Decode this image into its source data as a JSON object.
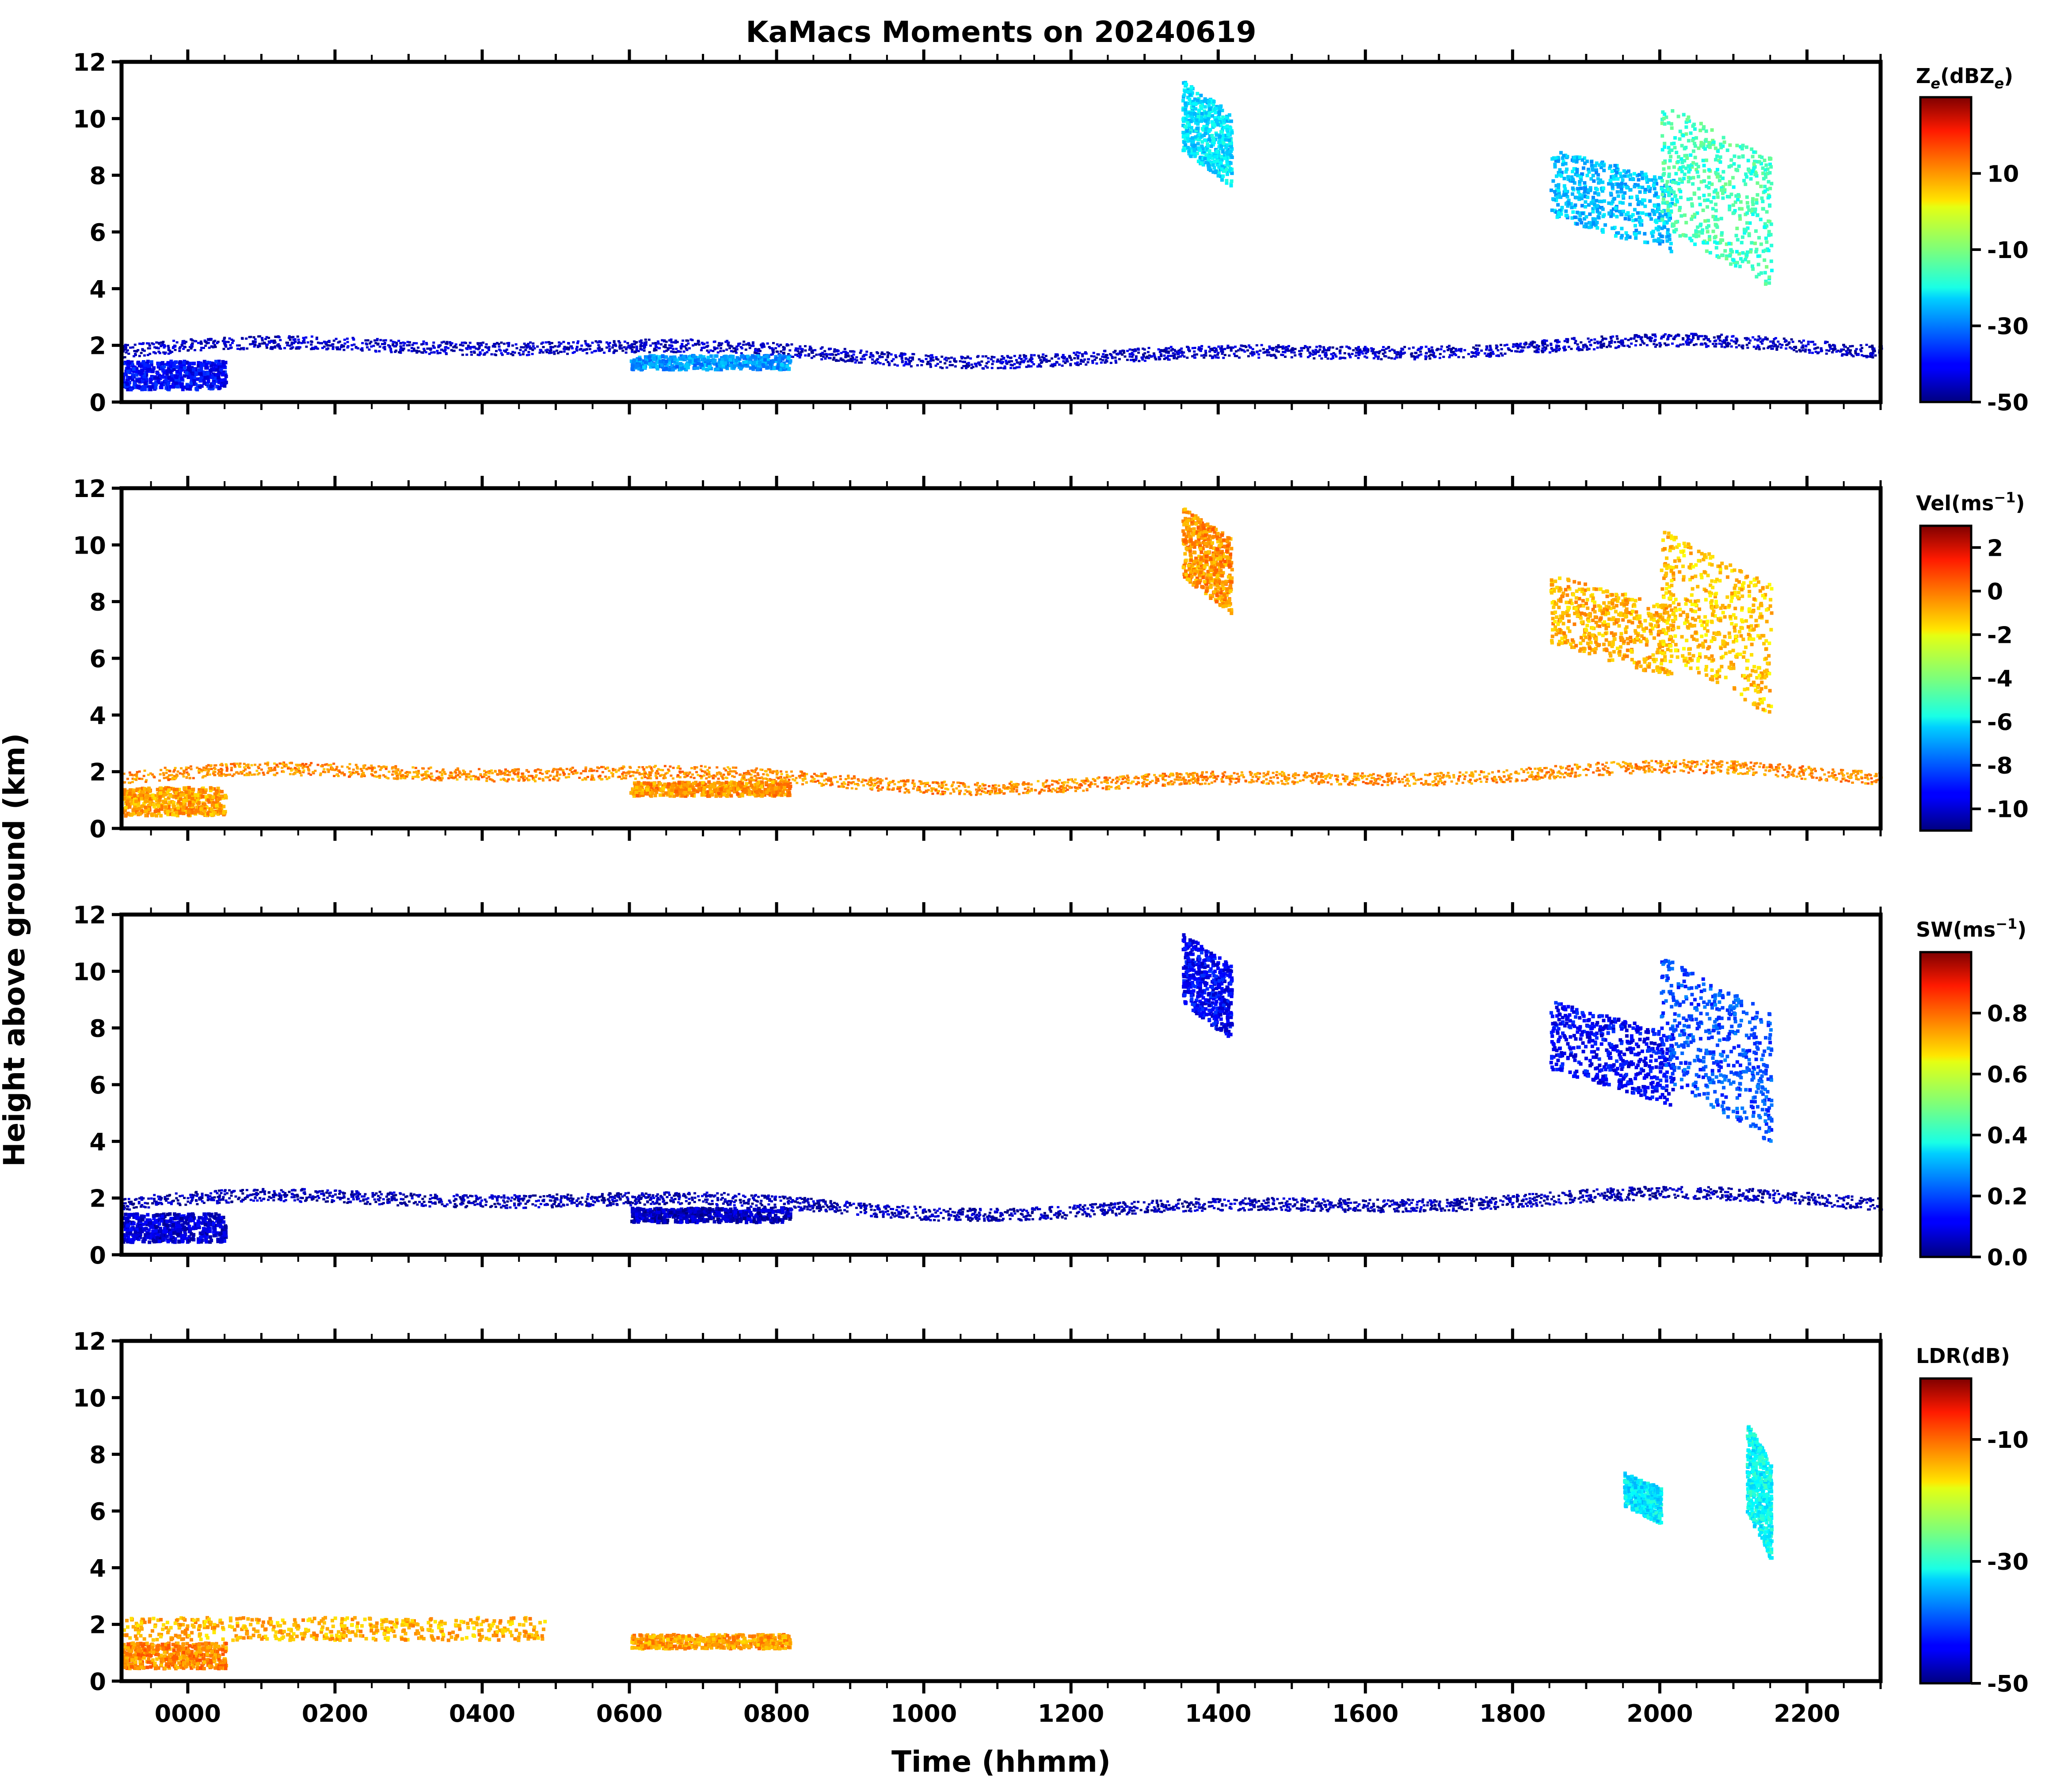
{
  "figure": {
    "title": "KaMacs Moments on 20240619",
    "xlabel": "Time (hhmm)",
    "ylabel": "Height above ground (km)"
  },
  "chart_data": [
    {
      "type": "heatmap",
      "panel": "Ze",
      "colorbar_label": "Ze(dBZe)",
      "colorbar_label_parts": {
        "main": "Z",
        "sub": "e",
        "units_open": "(dBZ",
        "units_sub": "e",
        "units_close": ")"
      },
      "colormap": "jet",
      "clim": [
        -50,
        30
      ],
      "colorbar_ticks": [
        10,
        -10,
        -30,
        -50
      ],
      "xlim": [
        -90,
        2300
      ],
      "ylim": [
        0,
        12
      ],
      "x_ticks": [
        "0000",
        "0200",
        "0400",
        "0600",
        "0800",
        "1000",
        "1200",
        "1400",
        "1600",
        "1800",
        "2000",
        "2200"
      ],
      "y_ticks": [
        0,
        2,
        4,
        6,
        8,
        10,
        12
      ],
      "features": [
        {
          "name": "boundary-layer-band",
          "x": [
            -90,
            2300
          ],
          "height_km": [
            1.6,
            2.6
          ],
          "value": -45
        },
        {
          "name": "low-echo-patch",
          "x": [
            -60,
            30
          ],
          "height_km": [
            0.5,
            1.5
          ],
          "value": -40
        },
        {
          "name": "midmorning-layer",
          "x": [
            560,
            810
          ],
          "height_km": [
            1.2,
            1.7
          ],
          "value": -28
        },
        {
          "name": "cirrus-1300",
          "x": [
            1290,
            1370
          ],
          "height_km": [
            7.6,
            11.4
          ],
          "value": -22
        },
        {
          "name": "cirrus-1800",
          "x": [
            1830,
            1970
          ],
          "height_km": [
            5.3,
            9.0
          ],
          "value": -25
        },
        {
          "name": "cirrus-2000",
          "x": [
            2000,
            2130
          ],
          "height_km": [
            4.0,
            10.6
          ],
          "value": -15
        }
      ]
    },
    {
      "type": "heatmap",
      "panel": "Vel",
      "colorbar_label": "Vel(ms−1)",
      "colorbar_label_parts": {
        "main": "Vel(ms",
        "sup": "−1",
        "close": ")"
      },
      "colormap": "jet",
      "clim": [
        -11,
        3
      ],
      "colorbar_ticks": [
        2,
        0,
        -2,
        -4,
        -6,
        -8,
        -10
      ],
      "xlim": [
        -90,
        2300
      ],
      "ylim": [
        0,
        12
      ],
      "features": [
        {
          "name": "boundary-layer-band",
          "x": [
            -90,
            2300
          ],
          "height_km": [
            1.6,
            2.6
          ],
          "value": -0.7
        },
        {
          "name": "low-echo-patch",
          "x": [
            -60,
            30
          ],
          "height_km": [
            0.5,
            1.5
          ],
          "value": -1.0
        },
        {
          "name": "midmorning-layer",
          "x": [
            560,
            810
          ],
          "height_km": [
            1.2,
            1.7
          ],
          "value": -0.8
        },
        {
          "name": "cirrus-1300",
          "x": [
            1290,
            1370
          ],
          "height_km": [
            7.6,
            11.4
          ],
          "value": -0.8
        },
        {
          "name": "cirrus-1800",
          "x": [
            1830,
            1970
          ],
          "height_km": [
            5.3,
            9.0
          ],
          "value": -1.2
        },
        {
          "name": "cirrus-2000",
          "x": [
            2000,
            2130
          ],
          "height_km": [
            4.0,
            10.6
          ],
          "value": -1.5
        }
      ]
    },
    {
      "type": "heatmap",
      "panel": "SW",
      "colorbar_label": "SW(ms−1)",
      "colorbar_label_parts": {
        "main": "SW(ms",
        "sup": "−1",
        "close": ")"
      },
      "colormap": "jet",
      "clim": [
        0.0,
        1.0
      ],
      "colorbar_ticks": [
        0.8,
        0.6,
        0.4,
        0.2,
        0.0
      ],
      "colorbar_tick_labels": [
        "0.8",
        "0.6",
        "0.4",
        "0.2",
        "0.0"
      ],
      "xlim": [
        -90,
        2300
      ],
      "ylim": [
        0,
        12
      ],
      "features": [
        {
          "name": "boundary-layer-band",
          "x": [
            -90,
            2300
          ],
          "height_km": [
            1.6,
            2.6
          ],
          "value": 0.05
        },
        {
          "name": "low-echo-patch",
          "x": [
            -60,
            30
          ],
          "height_km": [
            0.5,
            1.5
          ],
          "value": 0.08
        },
        {
          "name": "midmorning-layer",
          "x": [
            560,
            810
          ],
          "height_km": [
            1.2,
            1.7
          ],
          "value": 0.06
        },
        {
          "name": "cirrus-1300",
          "x": [
            1290,
            1370
          ],
          "height_km": [
            7.6,
            11.4
          ],
          "value": 0.12
        },
        {
          "name": "cirrus-1800",
          "x": [
            1830,
            1970
          ],
          "height_km": [
            5.3,
            9.0
          ],
          "value": 0.12
        },
        {
          "name": "cirrus-2000",
          "x": [
            2000,
            2130
          ],
          "height_km": [
            4.0,
            10.6
          ],
          "value": 0.2
        }
      ]
    },
    {
      "type": "heatmap",
      "panel": "LDR",
      "colorbar_label": "LDR(dB)",
      "colormap": "jet",
      "clim": [
        -50,
        0
      ],
      "colorbar_ticks": [
        -10,
        -30,
        -50
      ],
      "xlim": [
        -90,
        2300
      ],
      "ylim": [
        0,
        12
      ],
      "features": [
        {
          "name": "boundary-layer-band",
          "x": [
            -90,
            450
          ],
          "height_km": [
            1.5,
            2.3
          ],
          "value": -15
        },
        {
          "name": "low-echo-patch",
          "x": [
            -60,
            30
          ],
          "height_km": [
            0.5,
            1.4
          ],
          "value": -13
        },
        {
          "name": "midmorning-layer",
          "x": [
            560,
            810
          ],
          "height_km": [
            1.2,
            1.7
          ],
          "value": -14
        },
        {
          "name": "cirrus-1800",
          "x": [
            1930,
            1960
          ],
          "height_km": [
            5.6,
            7.4
          ],
          "value": -32
        },
        {
          "name": "cirrus-2000",
          "x": [
            2070,
            2130
          ],
          "height_km": [
            4.3,
            9.2
          ],
          "value": -31
        }
      ]
    }
  ]
}
